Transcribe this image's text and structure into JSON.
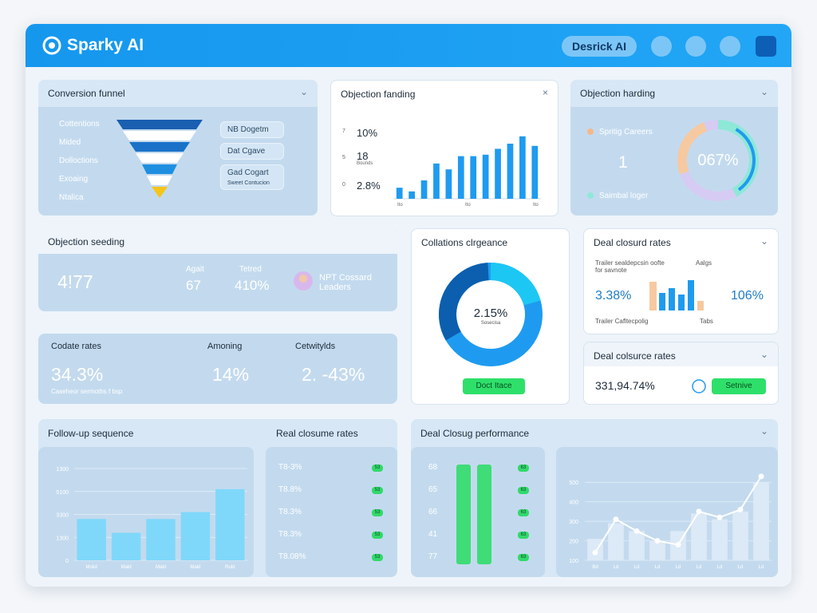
{
  "header": {
    "brand": "Sparky AI",
    "user_button": "Desrick AI"
  },
  "funnel": {
    "title": "Conversion funnel",
    "items": [
      "Cottentions",
      "Mided",
      "Dolloctions",
      "Exoaing",
      "Ntalica"
    ],
    "tags": [
      "NB Dogetm",
      "Dat Cgave",
      "Gad Cogart"
    ],
    "tag_note": "Sweet Contucion"
  },
  "fanding": {
    "title": "Objection fanding",
    "axis_labels": [
      "10%",
      "18",
      "2.8%"
    ],
    "axis_marks": [
      "7",
      "5",
      "0"
    ],
    "axis_note": "Bounds",
    "x_labels": [
      "Ito",
      "Ito",
      "Ito"
    ],
    "values": [
      15,
      10,
      25,
      48,
      40,
      58,
      58,
      60,
      68,
      75,
      85,
      72
    ],
    "ylim": [
      0,
      100
    ]
  },
  "harding": {
    "title": "Objection harding",
    "legend_top": "Spritig Careers",
    "count": "1",
    "donut_label": "067%",
    "legend_bottom": "Saimbal loger"
  },
  "seeding": {
    "title": "Objection seeding",
    "main": "4!77",
    "stats": [
      {
        "label": "Agait",
        "value": "67"
      },
      {
        "label": "Tetred",
        "value": "410%"
      }
    ],
    "person": "NPT Cossard Leaders"
  },
  "codate": {
    "stats": [
      {
        "label": "Codate rates",
        "value": "34.3%",
        "note": "Caseheor sermoths f bsp"
      },
      {
        "label": "Amoning",
        "value": "14%"
      },
      {
        "label": "Cetwitylds",
        "value": "2. -43%"
      }
    ]
  },
  "collations": {
    "title": "Collations clrgeance",
    "donut_label": "2.15%",
    "donut_note": "Sosecisa",
    "button": "Doct Itace"
  },
  "closurd": {
    "title": "Deal closurd rates",
    "note": "Trailer sealdepcsin oofte for savnote",
    "legend": "Aalgs",
    "left": "3.38%",
    "right": "106%",
    "foot": "Trailer Cafltecpolig",
    "foot_legend": "Tabs"
  },
  "colsurce": {
    "title": "Deal colsurce rates",
    "value": "331,94.74%",
    "button": "Setnive"
  },
  "followup": {
    "title": "Follow-up sequence",
    "categories": [
      "Moiid",
      "Mald",
      "Mald",
      "Mald",
      "Ruld"
    ],
    "values": [
      1.8,
      1.2,
      1.8,
      2.1,
      3.1
    ],
    "ylim": [
      0,
      4
    ],
    "yticks": [
      {
        "value": 0,
        "label": "0"
      },
      {
        "value": 1,
        "label": "1300"
      },
      {
        "value": 2,
        "label": "3300"
      },
      {
        "value": 3,
        "label": "5100"
      },
      {
        "value": 4,
        "label": "1300"
      }
    ]
  },
  "realclose": {
    "title": "Real closume rates",
    "rows": [
      {
        "label": "T8-3%",
        "badge": "53"
      },
      {
        "label": "T8.8%",
        "badge": "53"
      },
      {
        "label": "T8.3%",
        "badge": "53"
      },
      {
        "label": "T8.3%",
        "badge": "53"
      },
      {
        "label": "T8.08%",
        "badge": "53"
      }
    ]
  },
  "performance": {
    "title": "Deal Closug performance",
    "rows": [
      {
        "label": "68",
        "badge": "63"
      },
      {
        "label": "65",
        "badge": "63"
      },
      {
        "label": "66",
        "badge": "63"
      },
      {
        "label": "41",
        "badge": "63"
      },
      {
        "label": "77",
        "badge": "63"
      }
    ],
    "chart": {
      "categories": [
        "Bd",
        "Ld",
        "Ld",
        "Ld",
        "Ld",
        "Ld",
        "Ld",
        "Ld",
        "Ld"
      ],
      "bars": [
        2.1,
        2.9,
        2.5,
        2.0,
        2.5,
        3.4,
        3.1,
        3.5,
        5.0
      ],
      "line": [
        1.4,
        3.1,
        2.5,
        2.0,
        1.8,
        3.5,
        3.2,
        3.6,
        5.3
      ],
      "ylim": [
        1,
        5.5
      ],
      "yticks": [
        {
          "value": 1,
          "label": "100"
        },
        {
          "value": 2,
          "label": "200"
        },
        {
          "value": 3,
          "label": "300"
        },
        {
          "value": 4,
          "label": "400"
        },
        {
          "value": 5,
          "label": "500"
        }
      ]
    }
  }
}
